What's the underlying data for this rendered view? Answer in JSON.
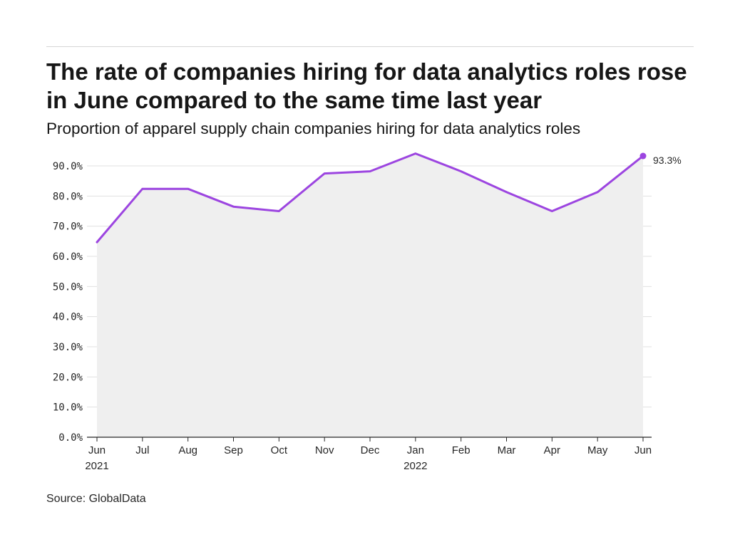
{
  "title": "The rate of companies hiring for data analytics roles rose in June compared to the same time last year",
  "subtitle": "Proportion of apparel supply chain companies hiring for data analytics roles",
  "source": "Source: GlobalData",
  "colors": {
    "line": "#9c45e0",
    "area": "#efefef",
    "grid": "#e0e0e0",
    "axis": "#262626"
  },
  "chart_data": {
    "type": "area",
    "categories": [
      "Jun",
      "Jul",
      "Aug",
      "Sep",
      "Oct",
      "Nov",
      "Dec",
      "Jan",
      "Feb",
      "Mar",
      "Apr",
      "May",
      "Jun"
    ],
    "category_years": [
      "2021",
      "",
      "",
      "",
      "",
      "",
      "",
      "2022",
      "",
      "",
      "",
      "",
      ""
    ],
    "values": [
      64.7,
      82.4,
      82.4,
      76.5,
      75.0,
      87.5,
      88.2,
      94.1,
      88.2,
      81.3,
      75.0,
      81.3,
      93.3
    ],
    "yticks": [
      "0.0%",
      "10.0%",
      "20.0%",
      "30.0%",
      "40.0%",
      "50.0%",
      "60.0%",
      "70.0%",
      "80.0%",
      "90.0%"
    ],
    "ylim": [
      0,
      90
    ],
    "end_label": "93.3%",
    "grid": true
  }
}
